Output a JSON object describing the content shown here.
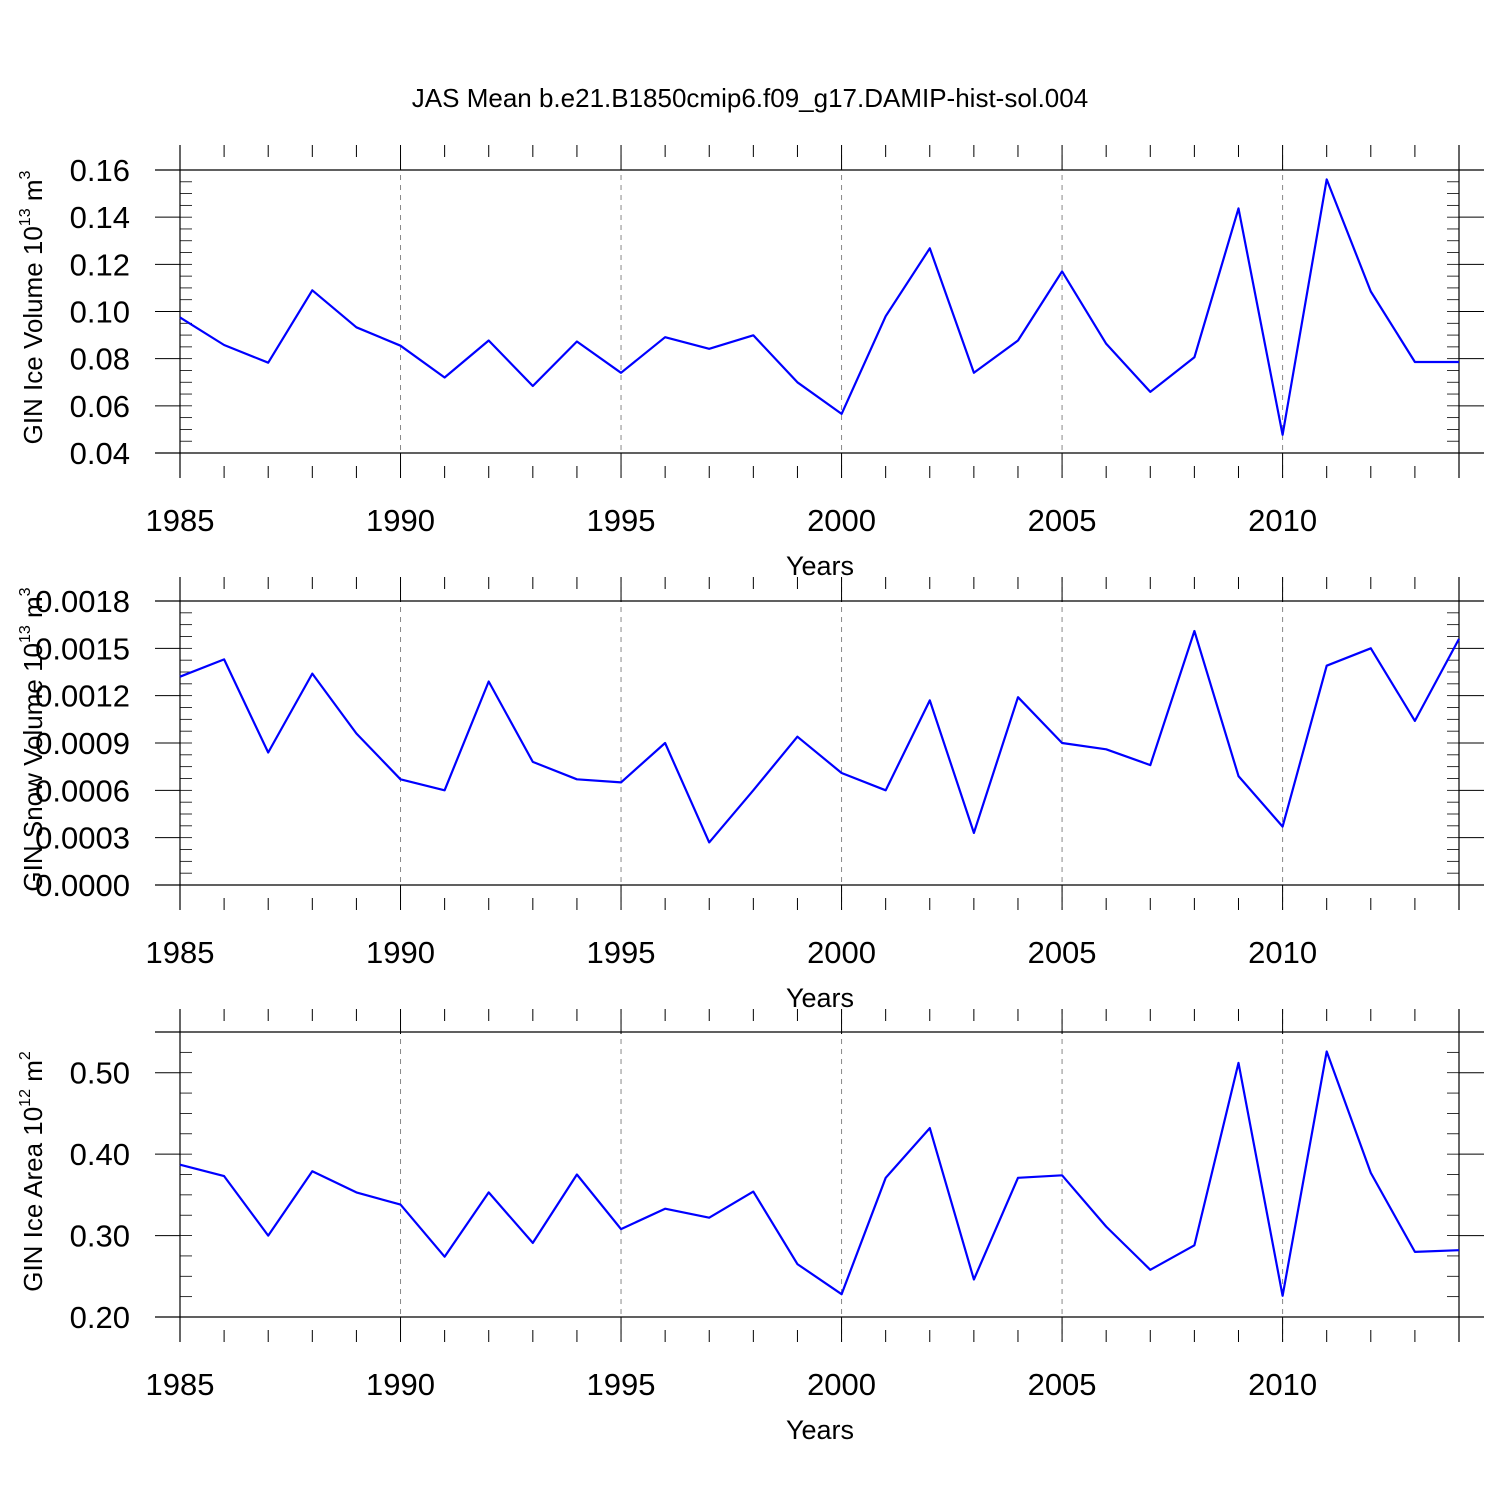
{
  "colors": {
    "series": "#0000ff",
    "axis": "#000000",
    "grid": "#888888"
  },
  "chart_data": [
    {
      "type": "line",
      "title": "JAS Mean b.e21.B1850cmip6.f09_g17.DAMIP-hist-sol.004",
      "xlabel": "Years",
      "ylabel": {
        "prefix": "GIN Ice Volume 10",
        "exp": "13",
        "unit": " m",
        "unit_exp": "3"
      },
      "xlim": [
        1985,
        2014
      ],
      "ylim": [
        0.04,
        0.16
      ],
      "x_ticks": [
        "1985",
        "1990",
        "1995",
        "2000",
        "2005",
        "2010"
      ],
      "y_ticks": [
        "0.04",
        "0.06",
        "0.08",
        "0.10",
        "0.12",
        "0.14",
        "0.16"
      ],
      "grid": "dashed vertical at major x ticks",
      "x": [
        1985,
        1986,
        1987,
        1988,
        1989,
        1990,
        1991,
        1992,
        1993,
        1994,
        1995,
        1996,
        1997,
        1998,
        1999,
        2000,
        2001,
        2002,
        2003,
        2004,
        2005,
        2006,
        2007,
        2008,
        2009,
        2010,
        2011,
        2012,
        2013,
        2014
      ],
      "values": [
        0.0975,
        0.0858,
        0.0783,
        0.109,
        0.0933,
        0.0855,
        0.072,
        0.0877,
        0.0684,
        0.0873,
        0.074,
        0.0891,
        0.0842,
        0.0899,
        0.07,
        0.0566,
        0.098,
        0.1268,
        0.074,
        0.0877,
        0.117,
        0.0863,
        0.0659,
        0.0806,
        0.1437,
        0.0477,
        0.156,
        0.1085,
        0.0786,
        0.0786
      ]
    },
    {
      "type": "line",
      "title": "",
      "xlabel": "Years",
      "ylabel": {
        "prefix": "GIN Snow Volume 10",
        "exp": "13",
        "unit": " m",
        "unit_exp": "3"
      },
      "xlim": [
        1985,
        2014
      ],
      "ylim": [
        0.0,
        0.0018
      ],
      "x_ticks": [
        "1985",
        "1990",
        "1995",
        "2000",
        "2005",
        "2010"
      ],
      "y_ticks": [
        "0.0000",
        "0.0003",
        "0.0006",
        "0.0009",
        "0.0012",
        "0.0015",
        "0.0018"
      ],
      "grid": "dashed vertical at major x ticks",
      "x": [
        1985,
        1986,
        1987,
        1988,
        1989,
        1990,
        1991,
        1992,
        1993,
        1994,
        1995,
        1996,
        1997,
        1998,
        1999,
        2000,
        2001,
        2002,
        2003,
        2004,
        2005,
        2006,
        2007,
        2008,
        2009,
        2010,
        2011,
        2012,
        2013,
        2014
      ],
      "values": [
        0.00132,
        0.00143,
        0.00084,
        0.00134,
        0.00096,
        0.00067,
        0.0006,
        0.00129,
        0.00078,
        0.00067,
        0.00065,
        0.0009,
        0.00027,
        0.0006,
        0.00094,
        0.00071,
        0.0006,
        0.00117,
        0.00033,
        0.00119,
        0.0009,
        0.00086,
        0.00076,
        0.00161,
        0.00069,
        0.00037,
        0.00139,
        0.0015,
        0.00104,
        0.00156
      ]
    },
    {
      "type": "line",
      "title": "",
      "xlabel": "Years",
      "ylabel": {
        "prefix": "GIN Ice Area 10",
        "exp": "12",
        "unit": " m",
        "unit_exp": "2"
      },
      "xlim": [
        1985,
        2014
      ],
      "ylim": [
        0.2,
        0.55
      ],
      "x_ticks": [
        "1985",
        "1990",
        "1995",
        "2000",
        "2005",
        "2010"
      ],
      "y_ticks": [
        "0.20",
        "0.30",
        "0.40",
        "0.50"
      ],
      "grid": "dashed vertical at major x ticks",
      "x": [
        1985,
        1986,
        1987,
        1988,
        1989,
        1990,
        1991,
        1992,
        1993,
        1994,
        1995,
        1996,
        1997,
        1998,
        1999,
        2000,
        2001,
        2002,
        2003,
        2004,
        2005,
        2006,
        2007,
        2008,
        2009,
        2010,
        2011,
        2012,
        2013,
        2014
      ],
      "values": [
        0.387,
        0.373,
        0.3,
        0.379,
        0.353,
        0.338,
        0.274,
        0.353,
        0.291,
        0.375,
        0.308,
        0.333,
        0.322,
        0.354,
        0.265,
        0.228,
        0.371,
        0.432,
        0.246,
        0.371,
        0.374,
        0.311,
        0.258,
        0.288,
        0.512,
        0.226,
        0.526,
        0.377,
        0.28,
        0.282
      ]
    }
  ]
}
